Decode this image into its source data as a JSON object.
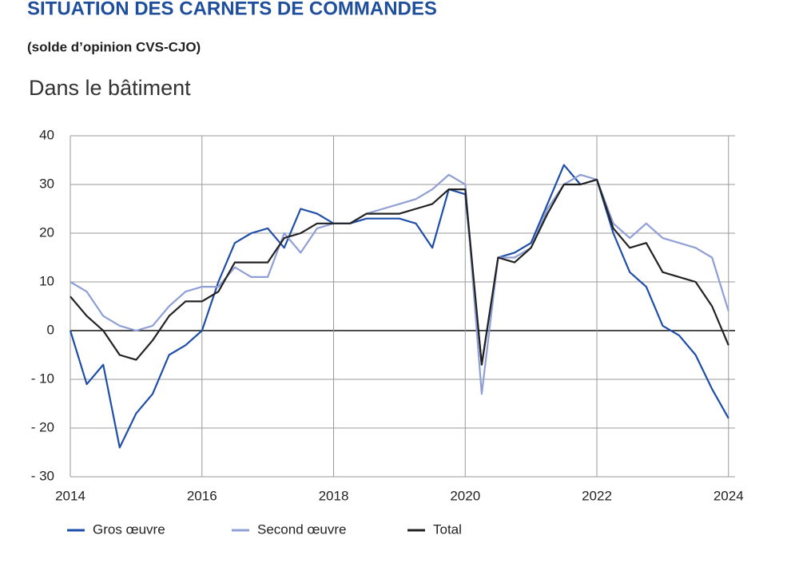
{
  "chart_data": {
    "type": "line",
    "title": "SITUATION DES CARNETS DE COMMANDES",
    "subtitle": "(solde d’opinion CVS-CJO)",
    "panel_title": "Dans le bâtiment",
    "x": [
      2014,
      2014.25,
      2014.5,
      2014.75,
      2015,
      2015.25,
      2015.5,
      2015.75,
      2016,
      2016.25,
      2016.5,
      2016.75,
      2017,
      2017.25,
      2017.5,
      2017.75,
      2018,
      2018.25,
      2018.5,
      2018.75,
      2019,
      2019.25,
      2019.5,
      2019.75,
      2020,
      2020.25,
      2020.5,
      2020.75,
      2021,
      2021.25,
      2021.5,
      2021.75,
      2022,
      2022.25,
      2022.5,
      2022.75,
      2023,
      2023.25,
      2023.5,
      2023.75,
      2024
    ],
    "series": [
      {
        "name": "Gros œuvre",
        "color": "#1f4ea8",
        "values": [
          0,
          -11,
          -7,
          -24,
          -17,
          -13,
          -5,
          -3,
          0,
          10,
          18,
          20,
          21,
          17,
          25,
          24,
          22,
          22,
          23,
          23,
          23,
          22,
          17,
          29,
          28,
          -7,
          15,
          16,
          18,
          26,
          34,
          30,
          31,
          20,
          12,
          9,
          1,
          -1,
          -5,
          -12,
          -18
        ]
      },
      {
        "name": "Second œuvre",
        "color": "#8f9fd6",
        "values": [
          10,
          8,
          3,
          1,
          0,
          1,
          5,
          8,
          9,
          9,
          13,
          11,
          11,
          20,
          16,
          21,
          22,
          22,
          24,
          25,
          26,
          27,
          29,
          32,
          30,
          -13,
          15,
          15,
          17,
          25,
          30,
          32,
          31,
          22,
          19,
          22,
          19,
          18,
          17,
          15,
          4
        ]
      },
      {
        "name": "Total",
        "color": "#222222",
        "values": [
          7,
          3,
          0,
          -5,
          -6,
          -2,
          3,
          6,
          6,
          8,
          14,
          14,
          14,
          19,
          20,
          22,
          22,
          22,
          24,
          24,
          24,
          25,
          26,
          29,
          29,
          -7,
          15,
          14,
          17,
          24,
          30,
          30,
          31,
          21,
          17,
          18,
          12,
          11,
          10,
          5,
          -3
        ]
      }
    ],
    "xlim": [
      2014,
      2024.1
    ],
    "xticks": [
      2014,
      2016,
      2018,
      2020,
      2022,
      2024
    ],
    "ylim": [
      -30,
      40
    ],
    "yticks": [
      {
        "value": -30,
        "label": "- 30"
      },
      {
        "value": -20,
        "label": "- 20"
      },
      {
        "value": -10,
        "label": "- 10"
      },
      0,
      10,
      20,
      30,
      40
    ],
    "grid": true
  }
}
